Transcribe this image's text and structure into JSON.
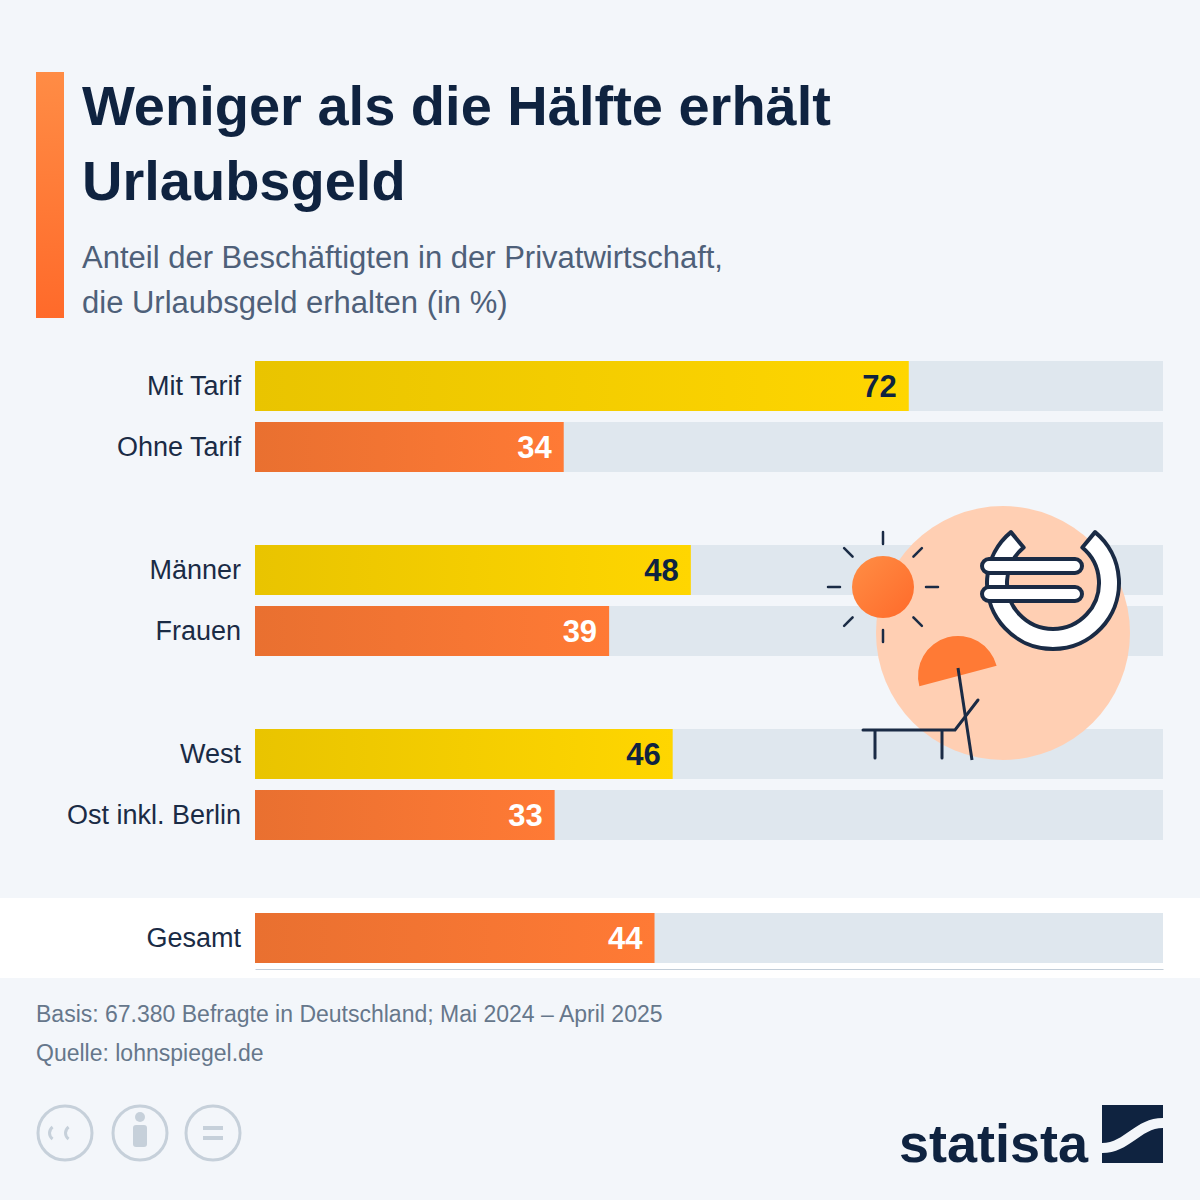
{
  "chart_data": {
    "type": "bar",
    "orientation": "horizontal",
    "title": "Weniger als die Hälfte erhält Urlaubsgeld",
    "subtitle": "Anteil der Beschäftigten in der Privatwirtschaft, die Urlaubsgeld erhalten (in %)",
    "categories": [
      "Mit Tarif",
      "Ohne Tarif",
      "Männer",
      "Frauen",
      "West",
      "Ost inkl. Berlin",
      "Gesamt"
    ],
    "values": [
      72,
      34,
      48,
      39,
      46,
      33,
      44
    ],
    "colors": [
      "#ffd600",
      "#ff7a35",
      "#ffd600",
      "#ff7a35",
      "#ffd600",
      "#ff7a35",
      "#ff7a35"
    ],
    "xlim": [
      0,
      100
    ],
    "xticks": [],
    "data_labels": true,
    "tick_labels": "y",
    "note": "Basis: 67.380 Befragte in Deutschland; Mai 2024 – April 2025",
    "source": "Quelle: lohnspiegel.de",
    "logo": "statista"
  }
}
